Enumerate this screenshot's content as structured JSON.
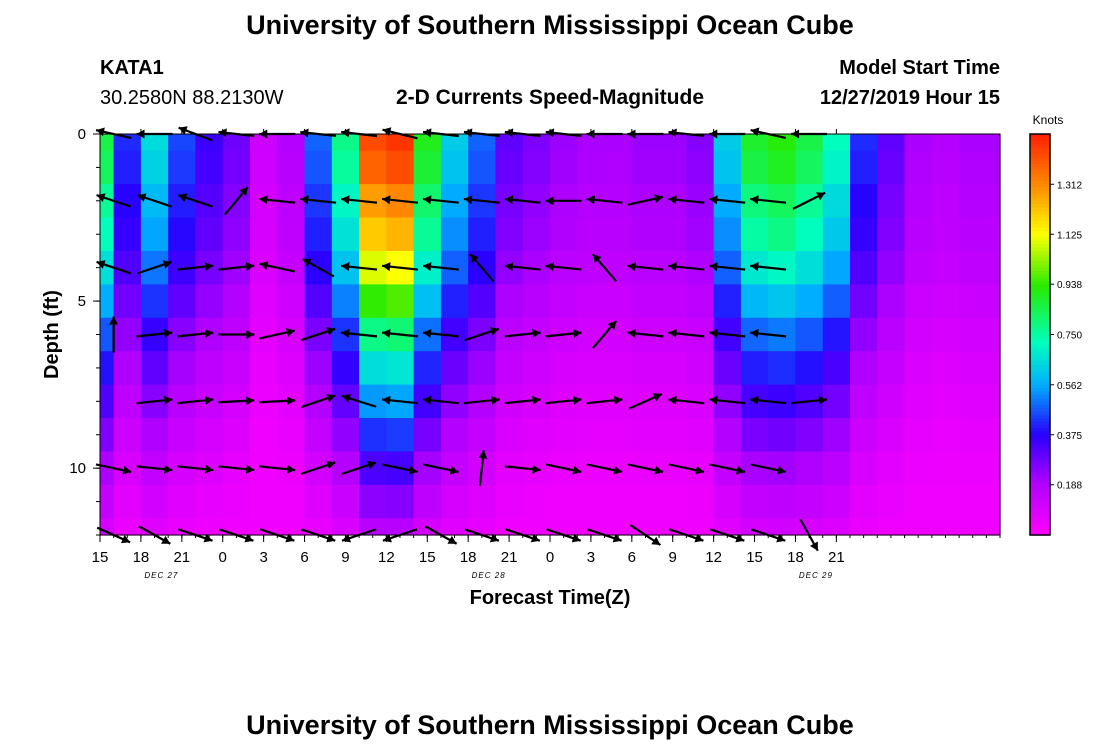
{
  "header": {
    "title": "University of Southern Mississippi Ocean Cube",
    "station": "KATA1",
    "coords": "30.2580N 88.2130W",
    "model_start_label": "Model Start Time",
    "model_start_value": "12/27/2019 Hour 15",
    "footer_title": "University of Southern Mississippi Ocean Cube"
  },
  "chart_data": {
    "type": "heatmap",
    "title": "2-D Currents Speed-Magnitude",
    "xlabel": "Forecast Time(Z)",
    "ylabel": "Depth (ft)",
    "x_start_hour": 15,
    "x_end_hour": 81,
    "x_ticks": [
      {
        "hour": 15,
        "label": "15"
      },
      {
        "hour": 18,
        "label": "18"
      },
      {
        "hour": 21,
        "label": "21"
      },
      {
        "hour": 24,
        "label": "0"
      },
      {
        "hour": 27,
        "label": "3"
      },
      {
        "hour": 30,
        "label": "6"
      },
      {
        "hour": 33,
        "label": "9"
      },
      {
        "hour": 36,
        "label": "12"
      },
      {
        "hour": 39,
        "label": "15"
      },
      {
        "hour": 42,
        "label": "18"
      },
      {
        "hour": 45,
        "label": "21"
      },
      {
        "hour": 48,
        "label": "0"
      },
      {
        "hour": 51,
        "label": "3"
      },
      {
        "hour": 54,
        "label": "6"
      },
      {
        "hour": 57,
        "label": "9"
      },
      {
        "hour": 60,
        "label": "12"
      },
      {
        "hour": 63,
        "label": "15"
      },
      {
        "hour": 66,
        "label": "18"
      },
      {
        "hour": 69,
        "label": "21"
      }
    ],
    "date_labels": [
      {
        "hour": 19.5,
        "label": "DEC 27"
      },
      {
        "hour": 43.5,
        "label": "DEC 28"
      },
      {
        "hour": 67.5,
        "label": "DEC 29"
      }
    ],
    "y_range": [
      0,
      12
    ],
    "y_ticks": [
      {
        "value": 0,
        "label": "0"
      },
      {
        "value": 5,
        "label": "5"
      },
      {
        "value": 10,
        "label": "10"
      }
    ],
    "colorbar": {
      "unit": "Knots",
      "min": 0.0,
      "max": 1.5,
      "ticks": [
        "1.312",
        "1.125",
        "0.938",
        "0.750",
        "0.562",
        "0.375",
        "0.188"
      ],
      "tick_values": [
        1.312,
        1.125,
        0.938,
        0.75,
        0.562,
        0.375,
        0.188
      ]
    },
    "depth_rows": [
      0,
      1,
      2,
      3,
      4,
      5,
      6,
      7,
      8,
      9,
      10,
      11,
      12
    ],
    "time_cols": [
      15,
      17,
      19,
      21,
      23,
      25,
      27,
      29,
      31,
      33,
      35,
      37,
      39,
      41,
      43,
      45,
      47,
      49,
      51,
      53,
      55,
      57,
      59,
      61,
      63,
      65,
      67,
      69,
      71,
      73,
      75,
      77,
      79,
      81
    ],
    "speed_profile": [
      0.85,
      0.42,
      0.65,
      0.45,
      0.35,
      0.28,
      0.12,
      0.18,
      0.48,
      0.78,
      1.42,
      1.46,
      0.9,
      0.62,
      0.48,
      0.3,
      0.26,
      0.22,
      0.2,
      0.2,
      0.22,
      0.22,
      0.25,
      0.62,
      0.88,
      0.92,
      0.85,
      0.72,
      0.42,
      0.3,
      0.2,
      0.18,
      0.2,
      0.2
    ],
    "depth_factor": [
      1.0,
      0.97,
      0.9,
      0.85,
      0.77,
      0.66,
      0.55,
      0.46,
      0.38,
      0.3,
      0.23,
      0.17,
      0.12
    ],
    "vectors_u": [
      [
        -0.9,
        -0.9,
        -0.8,
        -0.9,
        -0.95,
        -0.95,
        -0.9,
        -0.8,
        -0.9,
        -0.9,
        -0.9,
        -0.9,
        -0.9,
        -0.9,
        -0.95,
        -0.9,
        -0.9,
        -0.9
      ],
      [
        -0.9,
        -0.9,
        -0.9,
        0.5,
        -0.95,
        -0.95,
        -0.95,
        -0.95,
        -0.95,
        -0.95,
        -0.95,
        -0.9,
        -0.95,
        0.9,
        -0.95,
        -0.95,
        -0.95,
        0.8
      ],
      [
        -0.9,
        0.9,
        0.9,
        0.9,
        -0.9,
        -0.9,
        -0.95,
        -0.95,
        -0.95,
        -0.6,
        -0.95,
        -0.95,
        -0.6,
        -0.95,
        -0.95,
        -0.95,
        -0.95,
        0
      ],
      [
        0,
        0.95,
        0.95,
        0.95,
        0.9,
        0.9,
        -0.95,
        -0.95,
        -0.95,
        0.9,
        0.95,
        0.95,
        0.6,
        -0.95,
        -0.95,
        -0.95,
        -0.95,
        0
      ],
      [
        0,
        0.95,
        0.95,
        0.95,
        0.95,
        0.9,
        -0.95,
        -0.95,
        -0.95,
        0.95,
        0.95,
        0.95,
        0.95,
        0.9,
        -0.95,
        -0.95,
        -0.95,
        0.95
      ],
      [
        0.95,
        0.95,
        0.95,
        0.95,
        0.95,
        0.9,
        0.9,
        0.95,
        0.95,
        0.1,
        0.95,
        0.95,
        0.95,
        0.95,
        0.95,
        0.95,
        0.95,
        0
      ],
      [
        0.9,
        0.9,
        0.9,
        0.9,
        0.9,
        0.9,
        -0.9,
        -0.9,
        0.9,
        0.9,
        0.9,
        0.9,
        0.9,
        0.9,
        0.9,
        0.9,
        0.9,
        0.5
      ]
    ],
    "vectors_v": [
      [
        0.2,
        0,
        0.3,
        0.1,
        0,
        0.1,
        0.1,
        0.2,
        0.1,
        0.1,
        0.1,
        0.1,
        0,
        0,
        0.1,
        0,
        0.2,
        0
      ],
      [
        0.3,
        0.3,
        0.3,
        0.6,
        0.1,
        0.1,
        0.1,
        0.1,
        0.1,
        0.1,
        0.1,
        0,
        0.1,
        0.2,
        0.1,
        0.1,
        0.1,
        0.4
      ],
      [
        0.3,
        0.3,
        0.1,
        0.1,
        0.2,
        0.5,
        0.1,
        0.1,
        0.1,
        0.7,
        0.1,
        0.1,
        0.7,
        0.1,
        0.1,
        0.1,
        0.1,
        0
      ],
      [
        0.9,
        0.1,
        0.1,
        0,
        0.2,
        0.3,
        0.1,
        0.1,
        0.1,
        0.3,
        0.1,
        0.1,
        0.7,
        0.1,
        0.1,
        0.1,
        0.1,
        0
      ],
      [
        0,
        0.1,
        0.1,
        0.05,
        0.05,
        0.3,
        0.3,
        0.1,
        0.1,
        0.1,
        0.1,
        0.1,
        0.1,
        0.4,
        0.1,
        0.1,
        0.1,
        0.1
      ],
      [
        -0.2,
        -0.1,
        -0.1,
        -0.1,
        -0.1,
        0.3,
        0.3,
        -0.2,
        -0.2,
        0.95,
        -0.1,
        -0.2,
        -0.2,
        -0.2,
        -0.2,
        -0.2,
        -0.2,
        0
      ],
      [
        -0.4,
        -0.5,
        -0.3,
        -0.3,
        -0.3,
        -0.3,
        -0.3,
        -0.3,
        -0.5,
        -0.3,
        -0.3,
        -0.3,
        -0.3,
        -0.6,
        -0.3,
        -0.3,
        -0.3,
        -0.9
      ]
    ],
    "vector_rows": [
      0,
      2,
      4,
      6,
      8,
      10,
      12
    ],
    "vector_cols_hours": [
      16,
      19,
      22,
      25,
      28,
      31,
      34,
      37,
      40,
      43,
      46,
      49,
      52,
      55,
      58,
      61,
      64,
      67
    ]
  }
}
